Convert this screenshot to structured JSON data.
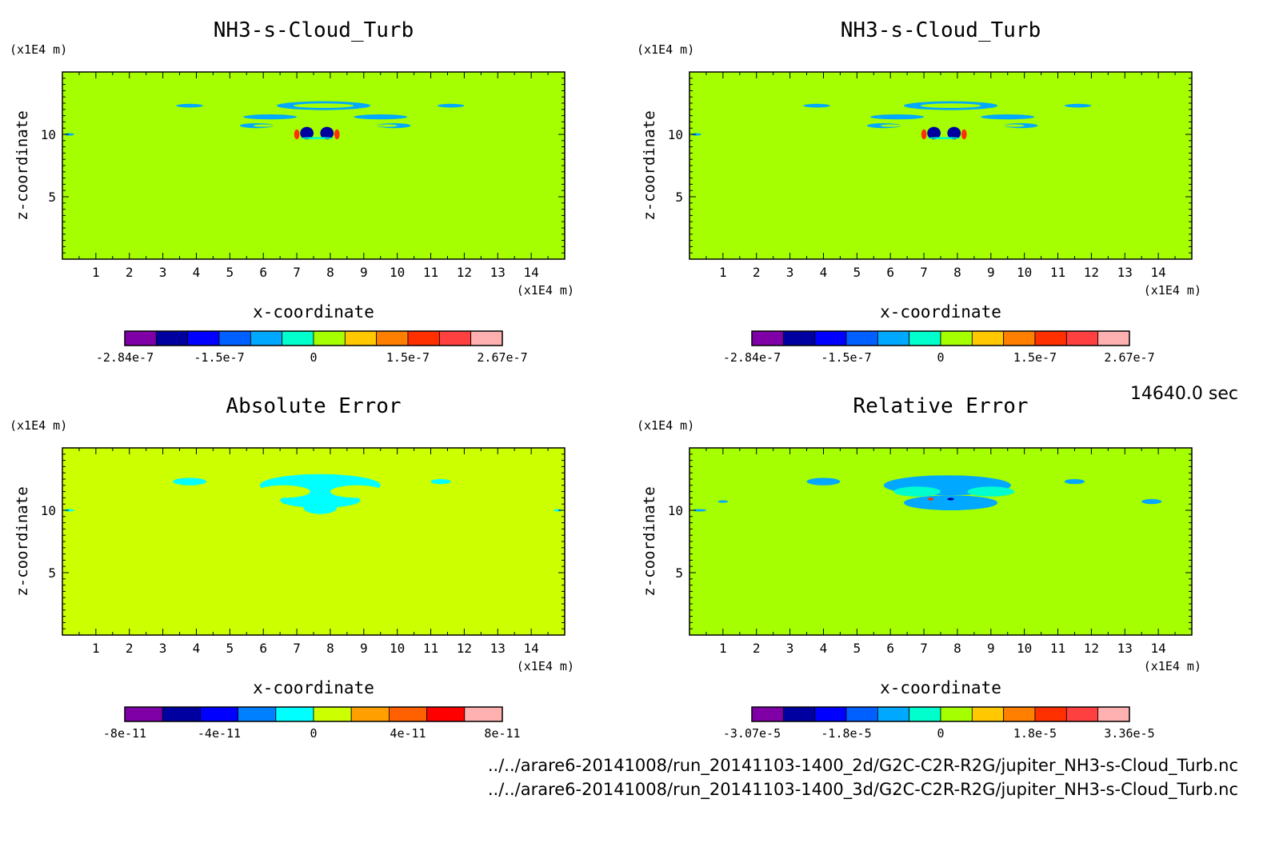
{
  "time_label": "14640.0 sec",
  "footer": {
    "line1": "../../arare6-20141008/run_20141103-1400_2d/G2C-C2R-R2G/jupiter_NH3-s-Cloud_Turb.nc",
    "line2": "../../arare6-20141008/run_20141103-1400_3d/G2C-C2R-R2G/jupiter_NH3-s-Cloud_Turb.nc"
  },
  "chart_data": [
    {
      "type": "heatmap",
      "title": "NH3-s-Cloud_Turb",
      "xlabel": "x-coordinate",
      "ylabel": "z-coordinate",
      "xunit": "(x1E4 m)",
      "yunit": "(x1E4 m)",
      "xlim": [
        0,
        15
      ],
      "ylim": [
        0,
        15
      ],
      "xticks": [
        1,
        2,
        3,
        4,
        5,
        6,
        7,
        8,
        9,
        10,
        11,
        12,
        13,
        14
      ],
      "yticks": [
        5,
        10
      ],
      "background_color": "#a6ff00",
      "colorbar": {
        "colors": [
          "#8000a8",
          "#0000a0",
          "#0000ff",
          "#0060ff",
          "#00a8ff",
          "#00ffcc",
          "#a6ff00",
          "#ffc800",
          "#ff8000",
          "#ff3000",
          "#ff4040",
          "#ffb0b0"
        ],
        "tick_labels": [
          "-2.84e-7",
          "-1.5e-7",
          "0",
          "1.5e-7",
          "2.67e-7"
        ]
      }
    },
    {
      "type": "heatmap",
      "title": "NH3-s-Cloud_Turb",
      "xlabel": "x-coordinate",
      "ylabel": "z-coordinate",
      "xunit": "(x1E4 m)",
      "yunit": "(x1E4 m)",
      "xlim": [
        0,
        15
      ],
      "ylim": [
        0,
        15
      ],
      "xticks": [
        1,
        2,
        3,
        4,
        5,
        6,
        7,
        8,
        9,
        10,
        11,
        12,
        13,
        14
      ],
      "yticks": [
        5,
        10
      ],
      "background_color": "#a6ff00",
      "colorbar": {
        "colors": [
          "#8000a8",
          "#0000a0",
          "#0000ff",
          "#0060ff",
          "#00a8ff",
          "#00ffcc",
          "#a6ff00",
          "#ffc800",
          "#ff8000",
          "#ff3000",
          "#ff4040",
          "#ffb0b0"
        ],
        "tick_labels": [
          "-2.84e-7",
          "-1.5e-7",
          "0",
          "1.5e-7",
          "2.67e-7"
        ]
      }
    },
    {
      "type": "heatmap",
      "title": "Absolute Error",
      "xlabel": "x-coordinate",
      "ylabel": "z-coordinate",
      "xunit": "(x1E4 m)",
      "yunit": "(x1E4 m)",
      "xlim": [
        0,
        15
      ],
      "ylim": [
        0,
        15
      ],
      "xticks": [
        1,
        2,
        3,
        4,
        5,
        6,
        7,
        8,
        9,
        10,
        11,
        12,
        13,
        14
      ],
      "yticks": [
        5,
        10
      ],
      "background_color": "#ccff00",
      "colorbar": {
        "colors": [
          "#8000a8",
          "#0000a0",
          "#0000ff",
          "#0080ff",
          "#00ffff",
          "#ccff00",
          "#ffa000",
          "#ff6000",
          "#ff0000",
          "#ffb0b0"
        ],
        "tick_labels": [
          "-8e-11",
          "-4e-11",
          "0",
          "4e-11",
          "8e-11"
        ]
      }
    },
    {
      "type": "heatmap",
      "title": "Relative Error",
      "xlabel": "x-coordinate",
      "ylabel": "z-coordinate",
      "xunit": "(x1E4 m)",
      "yunit": "(x1E4 m)",
      "xlim": [
        0,
        15
      ],
      "ylim": [
        0,
        15
      ],
      "xticks": [
        1,
        2,
        3,
        4,
        5,
        6,
        7,
        8,
        9,
        10,
        11,
        12,
        13,
        14
      ],
      "yticks": [
        5,
        10
      ],
      "background_color": "#a6ff00",
      "colorbar": {
        "colors": [
          "#8000a8",
          "#0000a0",
          "#0000ff",
          "#0060ff",
          "#00a8ff",
          "#00ffcc",
          "#a6ff00",
          "#ffc800",
          "#ff8000",
          "#ff3000",
          "#ff4040",
          "#ffb0b0"
        ],
        "tick_labels": [
          "-3.07e-5",
          "-1.8e-5",
          "0",
          "1.8e-5",
          "3.36e-5"
        ]
      }
    }
  ]
}
